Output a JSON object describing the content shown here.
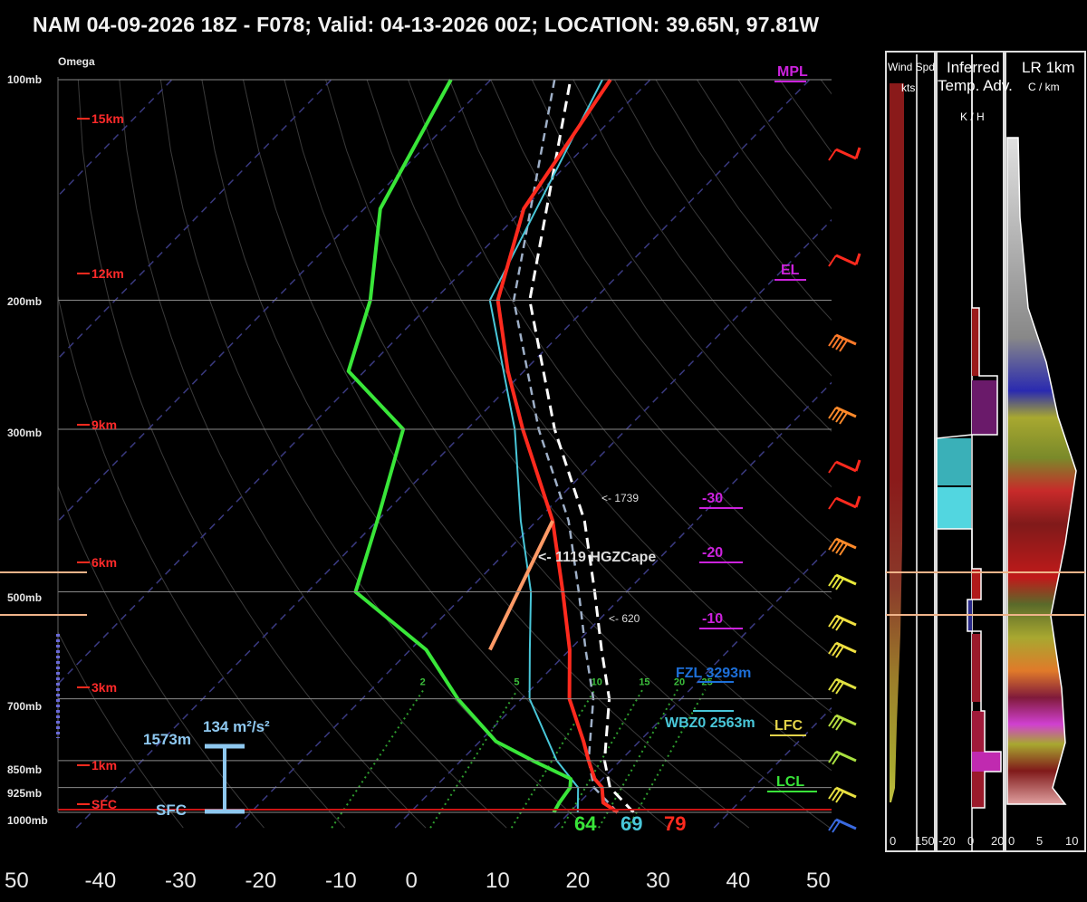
{
  "title": "NAM 04-09-2026 18Z - F078;  Valid: 04-13-2026 00Z;  LOCATION: 39.65N, 97.81W",
  "colors": {
    "temp": "#ff2a1e",
    "dewpoint": "#39e639",
    "wetbulb": "#49c7d9",
    "parcel": "#ffffff",
    "virtual_parcel": "#9fb0c8",
    "hgz": "#ff9a66",
    "mixing_ratio": "#2e9e2e",
    "dry_adiabat": "#3a3a3a",
    "isotherm_dashed": "#3a3a80",
    "height": "#ff2a1e",
    "freezing": "#1d6fd8",
    "wbz": "#49c7d9",
    "isotherm_label": "#cc22dd",
    "srh": "#8ec8f0",
    "lfc": "#e3d34a",
    "lcl": "#39e639"
  },
  "pressure_labels": [
    "100mb",
    "200mb",
    "300mb",
    "500mb",
    "700mb",
    "850mb",
    "925mb",
    "1000mb"
  ],
  "omega_label": "Omega",
  "height_labels": [
    "15km",
    "12km",
    "9km",
    "6km",
    "3km",
    "1km",
    "SFC"
  ],
  "annotations": {
    "mpl": "MPL",
    "el": "EL",
    "lfc": "LFC",
    "lcl": "LCL",
    "fzl": "FZL 3293m",
    "wbz": "WBZ0 2563m",
    "cape_1739": "<- 1739",
    "cape_hgz": "<- 1119 HGZCape",
    "cape_620": "<- 620",
    "iso_m30": "-30",
    "iso_m20": "-20",
    "iso_m10": "-10",
    "srh_depth": "1573m",
    "srh_value": "134 m²/s²",
    "srh_base": "SFC",
    "sfc_dewpoint": "64",
    "sfc_wetbulb": "69",
    "sfc_temp": "79"
  },
  "mixing_ratio_labels": [
    "2",
    "5",
    "10",
    "15",
    "20",
    "25"
  ],
  "x_ticks": [
    "50",
    "-40",
    "-30",
    "-20",
    "-10",
    "0",
    "10",
    "20",
    "30",
    "40",
    "50"
  ],
  "panels": {
    "wind": {
      "title_line1": "Wind Spd",
      "title_line2": "kts",
      "ticks": [
        "0",
        "150"
      ]
    },
    "tadv": {
      "title_line1": "Inferred",
      "title_line2": "Temp. Adv.",
      "title_line3": "K / H",
      "ticks": [
        "-20",
        "0",
        "20"
      ]
    },
    "lapse": {
      "title_line1": "LR 1km",
      "title_line2": "C / km",
      "ticks": [
        "0",
        "5",
        "10"
      ]
    }
  },
  "chart_data": {
    "type": "line",
    "title": "NAM 04-09-2026 18Z - F078;  Valid: 04-13-2026 00Z;  LOCATION: 39.65N, 97.81W",
    "xlabel": "",
    "ylabel": "",
    "xlim": [
      -50,
      50
    ],
    "ylim_mb": [
      1000,
      100
    ],
    "skew_t": true,
    "series": [
      {
        "name": "Temperature",
        "pressure_mb": [
          1000,
          970,
          925,
          900,
          850,
          800,
          700,
          600,
          500,
          400,
          300,
          250,
          200,
          150,
          100
        ],
        "values_c": [
          26,
          23,
          21,
          19,
          16,
          13,
          6,
          0,
          -8,
          -18,
          -33,
          -42,
          -52,
          -60,
          -65
        ]
      },
      {
        "name": "Dewpoint",
        "pressure_mb": [
          1000,
          970,
          925,
          900,
          850,
          800,
          700,
          600,
          500,
          400,
          300,
          250,
          200,
          150,
          100
        ],
        "values_c": [
          18,
          17.5,
          17,
          16,
          9,
          2,
          -8,
          -18,
          -34,
          -40,
          -48,
          -62,
          -68,
          -78,
          -85
        ]
      },
      {
        "name": "Wetbulb",
        "pressure_mb": [
          1000,
          925,
          850,
          700,
          600,
          500,
          400,
          300,
          200,
          100
        ],
        "values_c": [
          21,
          18,
          12,
          1,
          -5,
          -12,
          -22,
          -34,
          -53,
          -66
        ]
      },
      {
        "name": "Parcel",
        "pressure_mb": [
          1000,
          925,
          850,
          700,
          600,
          500,
          400,
          300,
          200,
          100
        ],
        "values_c": [
          28,
          22,
          18,
          11,
          4,
          -4,
          -14,
          -29,
          -48,
          -70
        ]
      }
    ]
  }
}
